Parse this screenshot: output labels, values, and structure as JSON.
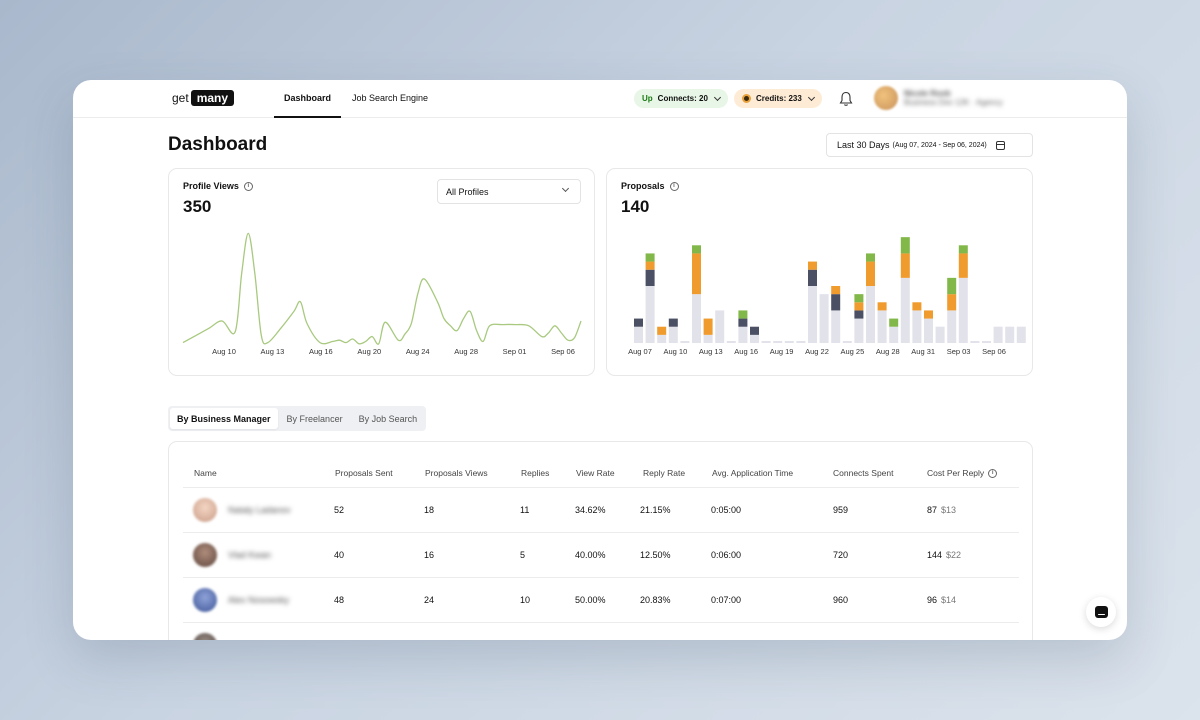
{
  "nav": {
    "logo_prefix": "get",
    "logo_box": "many",
    "tabs": [
      {
        "label": "Dashboard",
        "active": true
      },
      {
        "label": "Job Search Engine",
        "active": false
      }
    ],
    "connects": {
      "icon": "upwork-icon",
      "label": "Connects: 20"
    },
    "credits": {
      "icon": "coin-icon",
      "label": "Credits: 233"
    },
    "user_name": "Nicole Roob",
    "user_sub": "Business Dev 12K · Agency"
  },
  "header": {
    "title": "Dashboard",
    "date_main": "Last 30 Days",
    "date_range": "(Aug 07, 2024 - Sep 06, 2024)"
  },
  "profile_views": {
    "title": "Profile Views",
    "value": "350",
    "filter": "All Profiles",
    "chart_data": {
      "type": "line",
      "color": "#a8c97f",
      "xticks": [
        "Aug 10",
        "Aug 13",
        "Aug 16",
        "Aug 20",
        "Aug 24",
        "Aug 28",
        "Sep 01",
        "Sep 06"
      ],
      "x": [
        0,
        2,
        4,
        6,
        8,
        9,
        10,
        11,
        12,
        13,
        15,
        17,
        18,
        19,
        21,
        23,
        24,
        25,
        26,
        27,
        28,
        29,
        30,
        31,
        33,
        34,
        35,
        36,
        37,
        39,
        40,
        41,
        42,
        43,
        44,
        45,
        46,
        47,
        49,
        51,
        53,
        55,
        56,
        57,
        58,
        59,
        60,
        61
      ],
      "y": [
        2,
        8,
        14,
        20,
        11,
        60,
        93,
        60,
        8,
        2,
        14,
        28,
        36,
        18,
        2,
        3,
        4,
        2,
        5,
        1,
        3,
        7,
        1,
        19,
        4,
        9,
        18,
        43,
        55,
        36,
        22,
        16,
        12,
        22,
        28,
        12,
        3,
        16,
        17,
        17,
        16,
        7,
        10,
        16,
        10,
        4,
        6,
        20
      ],
      "ylim": [
        0,
        100
      ]
    }
  },
  "proposals": {
    "title": "Proposals",
    "value": "140",
    "chart_data": {
      "type": "bar",
      "stacked": true,
      "xticks": [
        "Aug 07",
        "Aug 10",
        "Aug 13",
        "Aug 16",
        "Aug 19",
        "Aug 22",
        "Aug 25",
        "Aug 28",
        "Aug 31",
        "Sep 03",
        "Sep 06"
      ],
      "colors": [
        "#e2e2ea",
        "#4b5064",
        "#ef9b2e",
        "#82b84a"
      ],
      "series": [
        {
          "values": [
            2,
            7,
            1,
            2,
            0,
            6,
            1,
            4,
            0,
            2,
            1,
            0,
            0,
            0,
            0,
            7,
            6,
            4,
            0,
            3,
            7,
            4,
            2,
            8,
            4,
            3,
            2,
            4,
            8,
            0,
            0,
            2,
            2,
            2
          ]
        },
        {
          "values": [
            1,
            2,
            0,
            1,
            0,
            0,
            0,
            0,
            0,
            1,
            1,
            0,
            0,
            0,
            0,
            2,
            0,
            2,
            0,
            1,
            0,
            0,
            0,
            0,
            0,
            0,
            0,
            0,
            0,
            0,
            0,
            0,
            0,
            0
          ]
        },
        {
          "values": [
            0,
            1,
            1,
            0,
            0,
            5,
            2,
            0,
            0,
            0,
            0,
            0,
            0,
            0,
            0,
            1,
            0,
            1,
            0,
            1,
            3,
            1,
            0,
            3,
            1,
            1,
            0,
            2,
            3,
            0,
            0,
            0,
            0,
            0
          ]
        },
        {
          "values": [
            0,
            1,
            0,
            0,
            0,
            1,
            0,
            0,
            0,
            1,
            0,
            0,
            0,
            0,
            0,
            0,
            0,
            0,
            0,
            1,
            1,
            0,
            1,
            2,
            0,
            0,
            0,
            2,
            1,
            0,
            0,
            0,
            0,
            0
          ]
        }
      ],
      "ylim": [
        0,
        14
      ]
    }
  },
  "tabs": [
    {
      "label": "By Business Manager",
      "active": true
    },
    {
      "label": "By Freelancer",
      "active": false
    },
    {
      "label": "By Job Search",
      "active": false
    }
  ],
  "table": {
    "headers": [
      "Name",
      "Proposals Sent",
      "Proposals Views",
      "Replies",
      "View Rate",
      "Reply Rate",
      "Avg. Application Time",
      "Connects Spent",
      "Cost Per Reply"
    ],
    "rows": [
      {
        "name": "Nataly Ladanov",
        "sent": "52",
        "views": "18",
        "replies": "11",
        "view_rate": "34.62%",
        "reply_rate": "21.15%",
        "avg_time": "0:05:00",
        "connects": "959",
        "cost": "87",
        "cost_usd": "$13",
        "avatar_color": "#e8c7b2"
      },
      {
        "name": "Vlad Kwan",
        "sent": "40",
        "views": "16",
        "replies": "5",
        "view_rate": "40.00%",
        "reply_rate": "12.50%",
        "avg_time": "0:06:00",
        "connects": "720",
        "cost": "144",
        "cost_usd": "$22",
        "avatar_color": "#8a6b5c"
      },
      {
        "name": "Alex Nosowsky",
        "sent": "48",
        "views": "24",
        "replies": "10",
        "view_rate": "50.00%",
        "reply_rate": "20.83%",
        "avg_time": "0:07:00",
        "connects": "960",
        "cost": "96",
        "cost_usd": "$14",
        "avatar_color": "#5a76b8"
      }
    ]
  }
}
